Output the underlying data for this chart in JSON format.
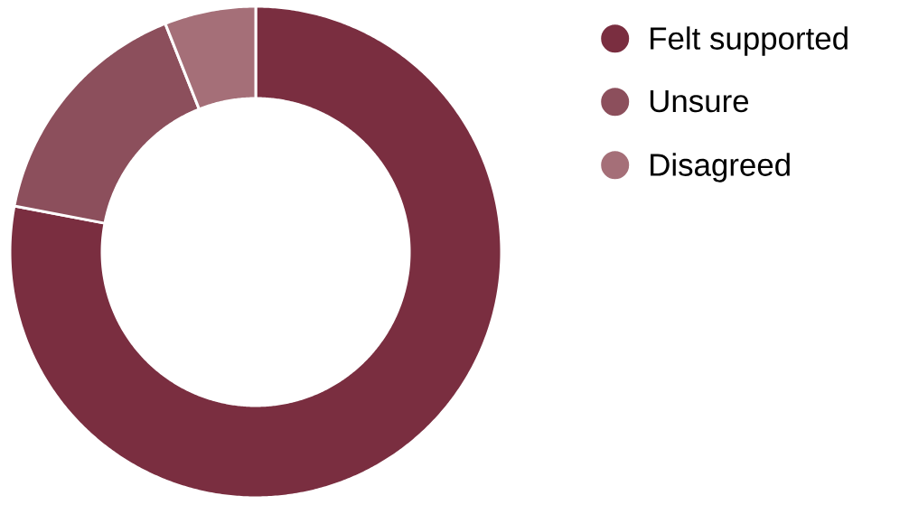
{
  "chart_data": {
    "type": "donut",
    "categories": [
      "Felt supported",
      "Unsure",
      "Disagreed"
    ],
    "values": [
      78,
      16,
      6
    ],
    "colors": [
      "#7a2e40",
      "#8c4f5c",
      "#a56f78"
    ],
    "legend": "right"
  }
}
